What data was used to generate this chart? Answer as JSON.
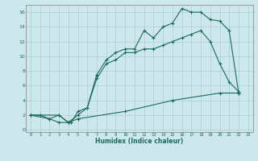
{
  "xlabel": "Humidex (Indice chaleur)",
  "bg_color": "#cce8ec",
  "grid_color": "#aacdd4",
  "line_color": "#1a6b5e",
  "line_width": 0.8,
  "marker": "+",
  "marker_size": 3.5,
  "marker_edge_width": 0.8,
  "xlim": [
    -0.5,
    23.5
  ],
  "ylim": [
    -0.3,
    17.0
  ],
  "xticks": [
    0,
    1,
    2,
    3,
    4,
    5,
    6,
    7,
    8,
    9,
    10,
    11,
    12,
    13,
    14,
    15,
    16,
    17,
    18,
    19,
    20,
    21,
    22,
    23
  ],
  "yticks": [
    0,
    2,
    4,
    6,
    8,
    10,
    12,
    14,
    16
  ],
  "curve1_x": [
    0,
    1,
    2,
    3,
    4,
    5,
    6,
    7,
    8,
    9,
    10,
    11,
    12,
    13,
    14,
    15,
    16,
    17,
    18,
    19,
    20,
    21,
    22
  ],
  "curve1_y": [
    2,
    2,
    1.5,
    1,
    1,
    2,
    3,
    7.5,
    9.5,
    10.5,
    11,
    11,
    13.5,
    12.5,
    14,
    14.5,
    16.5,
    16,
    16,
    15,
    14.8,
    13.5,
    5
  ],
  "curve2_x": [
    0,
    2,
    3,
    4,
    4.3,
    5,
    6,
    7,
    8,
    9,
    10,
    11,
    12,
    13,
    14,
    15,
    16,
    17,
    18,
    19,
    20,
    21,
    22
  ],
  "curve2_y": [
    2,
    1.5,
    2,
    1,
    1,
    2.5,
    3,
    7,
    9,
    9.5,
    10.5,
    10.5,
    11,
    11,
    11.5,
    12,
    12.5,
    13,
    13.5,
    12,
    9,
    6.5,
    5.2
  ],
  "curve3_x": [
    0,
    3,
    4,
    5,
    10,
    15,
    20,
    22
  ],
  "curve3_y": [
    2,
    2,
    1,
    1.5,
    2.5,
    4,
    5,
    5
  ]
}
